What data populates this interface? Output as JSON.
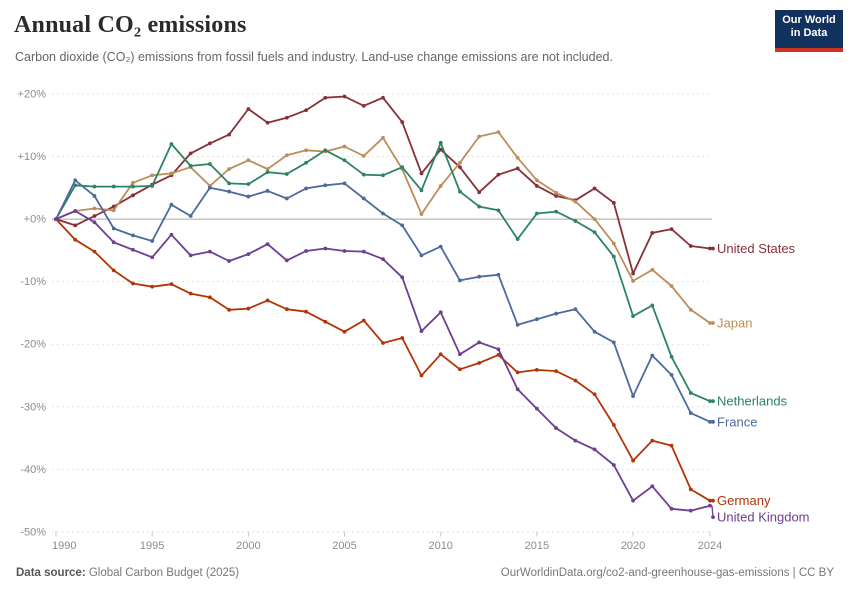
{
  "header": {
    "title": "Annual CO₂ emissions",
    "subtitle": "Carbon dioxide (CO₂) emissions from fossil fuels and industry. Land-use change emissions are not included.",
    "logo": {
      "line1": "Our World",
      "line2": "in Data",
      "bg_color": "#12325e",
      "bar_color": "#d13323"
    }
  },
  "footer": {
    "source_label": "Data source:",
    "source_value": " Global Carbon Budget (2025)",
    "link_text": "OurWorldinData.org/co2-and-greenhouse-gas-emissions | CC BY"
  },
  "chart_data": {
    "type": "line",
    "title": "Annual CO₂ emissions",
    "xlabel": "",
    "ylabel": "",
    "unit": "% change relative to 1990",
    "ylim": [
      -50,
      20
    ],
    "grid": true,
    "zero_line": true,
    "legend_position": "right-end-labels",
    "x": [
      1990,
      1991,
      1992,
      1993,
      1994,
      1995,
      1996,
      1997,
      1998,
      1999,
      2000,
      2001,
      2002,
      2003,
      2004,
      2005,
      2006,
      2007,
      2008,
      2009,
      2010,
      2011,
      2012,
      2013,
      2014,
      2015,
      2016,
      2017,
      2018,
      2019,
      2020,
      2021,
      2022,
      2023,
      2024
    ],
    "x_ticks": [
      1990,
      1995,
      2000,
      2005,
      2010,
      2015,
      2020,
      2024
    ],
    "y_ticks": [
      {
        "value": 20,
        "label": "+20%"
      },
      {
        "value": 10,
        "label": "+10%"
      },
      {
        "value": 0,
        "label": "+0%"
      },
      {
        "value": -10,
        "label": "-10%"
      },
      {
        "value": -20,
        "label": "-20%"
      },
      {
        "value": -30,
        "label": "-30%"
      },
      {
        "value": -40,
        "label": "-40%"
      },
      {
        "value": -50,
        "label": "-50%"
      }
    ],
    "series": [
      {
        "name": "United States",
        "color": "#883039",
        "values": [
          0,
          -1,
          0.5,
          2,
          3.8,
          5.5,
          7,
          10.5,
          12.1,
          13.5,
          17.6,
          15.4,
          16.2,
          17.4,
          19.4,
          19.6,
          18.1,
          19.4,
          15.5,
          7.3,
          11.1,
          8.3,
          4.3,
          7.1,
          8.1,
          5.3,
          3.7,
          3,
          4.9,
          2.6,
          -8.7,
          -2.2,
          -1.6,
          -4.3,
          -4.7
        ]
      },
      {
        "name": "Japan",
        "color": "#BC8E5A",
        "values": [
          0,
          1.3,
          1.7,
          1.4,
          5.8,
          7,
          7.3,
          8.3,
          5.3,
          8,
          9.4,
          8,
          10.2,
          11,
          10.8,
          11.6,
          10.1,
          13,
          8,
          0.8,
          5.3,
          9,
          13.2,
          13.9,
          9.8,
          6.2,
          4.2,
          2.8,
          0,
          -3.9,
          -9.9,
          -8.1,
          -10.7,
          -14.5,
          -16.6
        ]
      },
      {
        "name": "Netherlands",
        "color": "#2C8465",
        "values": [
          0,
          5.4,
          5.2,
          5.2,
          5.2,
          5.3,
          12,
          8.5,
          8.8,
          5.7,
          5.6,
          7.5,
          7.2,
          9,
          11,
          9.4,
          7.1,
          7,
          8.3,
          4.6,
          12.2,
          4.4,
          2,
          1.4,
          -3.2,
          0.9,
          1.2,
          -0.3,
          -2.1,
          -6,
          -15.5,
          -13.8,
          -22,
          -27.8,
          -29.1
        ]
      },
      {
        "name": "France",
        "color": "#4C6A9C",
        "values": [
          0,
          6.2,
          3.7,
          -1.5,
          -2.6,
          -3.5,
          2.3,
          0.5,
          5,
          4.4,
          3.6,
          4.5,
          3.3,
          4.9,
          5.4,
          5.7,
          3.3,
          0.9,
          -1,
          -5.8,
          -4.4,
          -9.8,
          -9.2,
          -8.9,
          -16.9,
          -16,
          -15.1,
          -14.4,
          -18,
          -19.7,
          -28.3,
          -21.8,
          -24.9,
          -31,
          -32.4
        ]
      },
      {
        "name": "Germany",
        "color": "#B13507",
        "values": [
          0,
          -3.3,
          -5.2,
          -8.2,
          -10.3,
          -10.8,
          -10.4,
          -11.9,
          -12.5,
          -14.5,
          -14.3,
          -13,
          -14.4,
          -14.8,
          -16.4,
          -18,
          -16.2,
          -19.8,
          -19,
          -25,
          -21.6,
          -24,
          -23,
          -21.7,
          -24.5,
          -24.1,
          -24.3,
          -25.8,
          -28,
          -32.9,
          -38.6,
          -35.4,
          -36.2,
          -43.2,
          -45
        ]
      },
      {
        "name": "United Kingdom",
        "color": "#6D3E91",
        "values": [
          0,
          1.3,
          -0.5,
          -3.7,
          -4.9,
          -6.1,
          -2.5,
          -5.8,
          -5.2,
          -6.7,
          -5.6,
          -4,
          -6.6,
          -5.1,
          -4.7,
          -5.1,
          -5.2,
          -6.4,
          -9.3,
          -17.9,
          -14.9,
          -21.6,
          -19.7,
          -20.8,
          -27.2,
          -30.3,
          -33.4,
          -35.4,
          -36.8,
          -39.3,
          -45,
          -42.7,
          -46.3,
          -46.6,
          -45.8
        ]
      }
    ]
  }
}
